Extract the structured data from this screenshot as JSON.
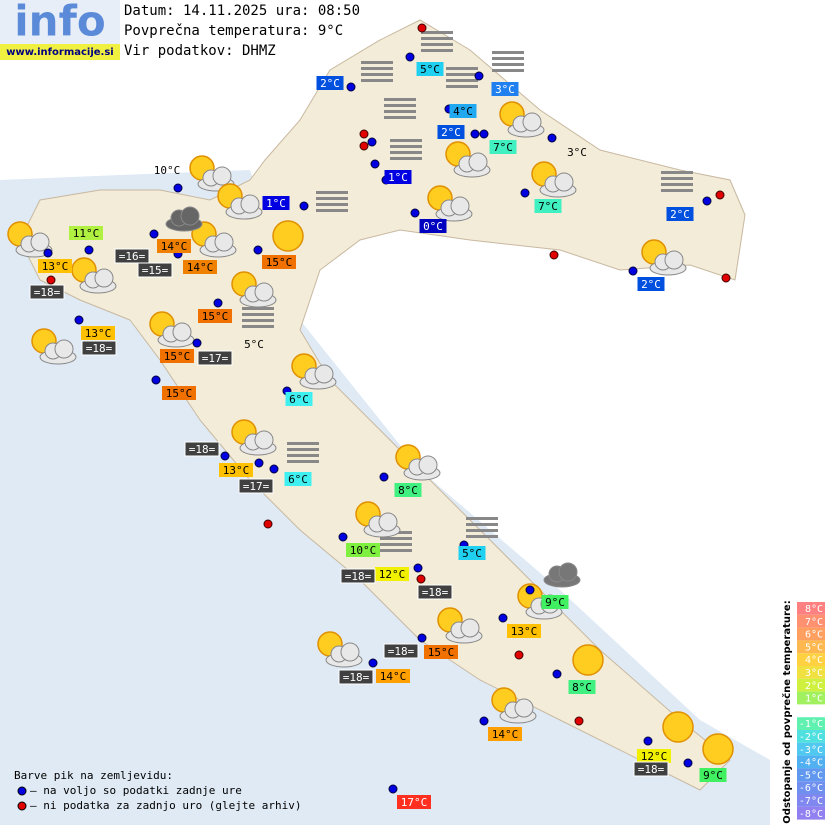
{
  "header": {
    "logo": "info",
    "site": "www.informacije.si",
    "date_line": "Datum: 14.11.2025 ura: 08:50",
    "avg_temp": "Povprečna temperatura: 9°C",
    "source": "Vir podatkov: DHMZ"
  },
  "stations": [
    {
      "text": "2°C",
      "color": "#0050e0"
    },
    {
      "text": "5°C",
      "color": "#20d0f0"
    },
    {
      "text": "3°C",
      "color": "#2080f0"
    },
    {
      "text": "4°C",
      "color": "#20a8f0"
    },
    {
      "text": "2°C",
      "color": "#0050e0"
    },
    {
      "text": "7°C",
      "color": "#40f0c0"
    },
    {
      "text": "1°C",
      "color": "#0000e0"
    },
    {
      "text": "3°C"
    },
    {
      "text": "10°C"
    },
    {
      "text": "1°C",
      "color": "#0000e0"
    },
    {
      "text": "0°C",
      "color": "#0000c0"
    },
    {
      "text": "7°C",
      "color": "#40f0c0"
    },
    {
      "text": "2°C",
      "color": "#0050e0"
    },
    {
      "text": "11°C",
      "color": "#b0f040"
    },
    {
      "text": "14°C",
      "color": "#f08000"
    },
    {
      "text": "14°C",
      "color": "#f08000"
    },
    {
      "text": "15°C",
      "color": "#f07000"
    },
    {
      "text": "2°C",
      "color": "#0050e0"
    },
    {
      "text": "13°C",
      "color": "#ffc000"
    },
    {
      "text": "13°C",
      "color": "#ffc000"
    },
    {
      "text": "15°C",
      "color": "#f07000"
    },
    {
      "text": "15°C",
      "color": "#f07000"
    },
    {
      "text": "15°C",
      "color": "#f07000"
    },
    {
      "text": "6°C",
      "color": "#40f0f0"
    },
    {
      "text": "5°C"
    },
    {
      "text": "13°C",
      "color": "#ffc000"
    },
    {
      "text": "6°C",
      "color": "#40f0f0"
    },
    {
      "text": "8°C",
      "color": "#40f080"
    },
    {
      "text": "10°C",
      "color": "#80f040"
    },
    {
      "text": "12°C",
      "color": "#f0f000"
    },
    {
      "text": "5°C",
      "color": "#20d0f0"
    },
    {
      "text": "9°C",
      "color": "#40f060"
    },
    {
      "text": "13°C",
      "color": "#ffc000"
    },
    {
      "text": "15°C",
      "color": "#f07000"
    },
    {
      "text": "14°C",
      "color": "#ffa000"
    },
    {
      "text": "8°C",
      "color": "#40f080"
    },
    {
      "text": "14°C",
      "color": "#ffa000"
    },
    {
      "text": "12°C",
      "color": "#f0f000"
    },
    {
      "text": "9°C",
      "color": "#40f060"
    },
    {
      "text": "17°C",
      "color": "#ff3020"
    }
  ],
  "sea": [
    "=18=",
    "=16=",
    "=15=",
    "=18=",
    "=17=",
    "=18=",
    "=17=",
    "=18=",
    "=18=",
    "=18=",
    "=18=",
    "=18="
  ],
  "legend": {
    "title": "Barve pik na zemljevidu:",
    "items": [
      {
        "text": "– na voljo so podatki zadnje ure",
        "color": "#0000e0"
      },
      {
        "text": "– ni podatka za zadnjo uro (glejte arhiv)",
        "color": "#e00000"
      }
    ]
  },
  "scale": {
    "title": "Odstopanje od povprečne temperature:",
    "items": [
      {
        "text": "8°C",
        "color": "#ff8080"
      },
      {
        "text": "7°C",
        "color": "#ff9070"
      },
      {
        "text": "6°C",
        "color": "#ffa060"
      },
      {
        "text": "5°C",
        "color": "#ffb850"
      },
      {
        "text": "4°C",
        "color": "#ffd040"
      },
      {
        "text": "3°C",
        "color": "#f0e040"
      },
      {
        "text": "2°C",
        "color": "#d0f040"
      },
      {
        "text": "1°C",
        "color": "#a0f060"
      },
      {
        "text": "-1°C",
        "color": "#60f0b0"
      },
      {
        "text": "-2°C",
        "color": "#50e0e0"
      },
      {
        "text": "-3°C",
        "color": "#50c8f0"
      },
      {
        "text": "-4°C",
        "color": "#50b0f0"
      },
      {
        "text": "-5°C",
        "color": "#6098f0"
      },
      {
        "text": "-6°C",
        "color": "#7090f0"
      },
      {
        "text": "-7°C",
        "color": "#8088f0"
      },
      {
        "text": "-8°C",
        "color": "#9080f0"
      }
    ]
  }
}
